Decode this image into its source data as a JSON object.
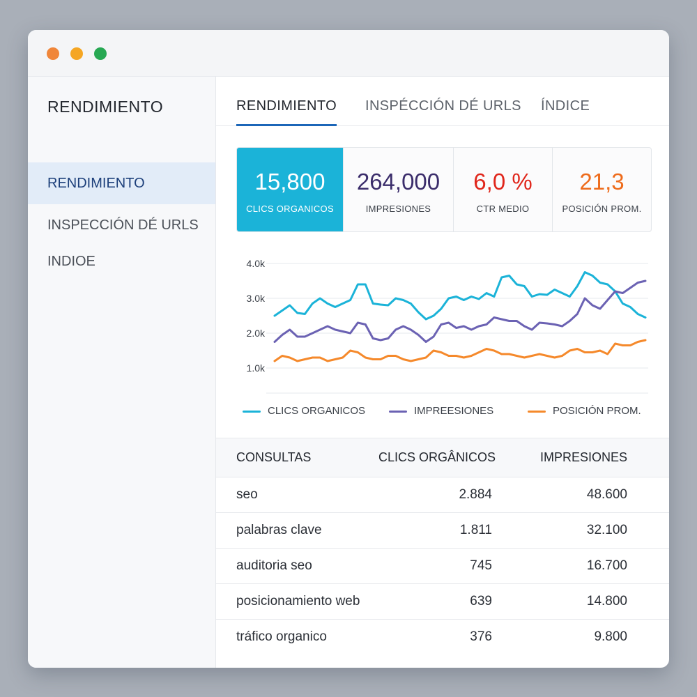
{
  "window": {
    "controls": [
      {
        "name": "close",
        "color": "#f0863a"
      },
      {
        "name": "minimize",
        "color": "#f5a623"
      },
      {
        "name": "maximize",
        "color": "#27a853"
      }
    ]
  },
  "sidebar": {
    "title": "RENDIMIENTO",
    "items": [
      {
        "label": "RENDIMIENTO",
        "active": true
      },
      {
        "label": "INSPECCIÓN DÉ URLS",
        "active": false
      },
      {
        "label": "INDIOE",
        "active": false
      }
    ]
  },
  "tabs": [
    {
      "label": "RENDIMIENTO",
      "active": true
    },
    {
      "label": "INSPÉCCIÓN DÉ URLS",
      "active": false
    },
    {
      "label": "ÍNDICE",
      "active": false
    }
  ],
  "stats": [
    {
      "value": "15,800",
      "label": "CLICS ORGANICOS",
      "color": "#ffffff",
      "highlight": true
    },
    {
      "value": "264,000",
      "label": "IMPRESIONES",
      "color": "#3b2d6b"
    },
    {
      "value": "6,0 %",
      "label": "CTR MEDIO",
      "color": "#e0261b"
    },
    {
      "value": "21,3",
      "label": "POSICIÓN PROM.",
      "color": "#ee6b1b"
    }
  ],
  "chart_data": {
    "type": "line",
    "ylim": [
      1.0,
      4.0
    ],
    "y_ticks": [
      "4.0k",
      "3.0k",
      "2.0k",
      "1.0k"
    ],
    "grid": true,
    "legend_position": "bottom",
    "series": [
      {
        "name": "CLICS ORGANICOS",
        "color": "#1bb3d8",
        "values": [
          2.5,
          2.65,
          2.8,
          2.58,
          2.55,
          2.85,
          3.0,
          2.85,
          2.75,
          2.85,
          2.95,
          3.4,
          3.4,
          2.85,
          2.82,
          2.8,
          3.0,
          2.95,
          2.85,
          2.6,
          2.4,
          2.5,
          2.7,
          3.0,
          3.05,
          2.95,
          3.05,
          2.98,
          3.15,
          3.05,
          3.6,
          3.65,
          3.4,
          3.35,
          3.05,
          3.12,
          3.1,
          3.25,
          3.15,
          3.05,
          3.35,
          3.75,
          3.65,
          3.45,
          3.4,
          3.2,
          2.85,
          2.75,
          2.55,
          2.45
        ]
      },
      {
        "name": "IMPREESIONES",
        "color": "#6b62b3",
        "values": [
          1.75,
          1.95,
          2.1,
          1.9,
          1.9,
          2.0,
          2.1,
          2.2,
          2.1,
          2.05,
          2.0,
          2.3,
          2.25,
          1.85,
          1.8,
          1.85,
          2.1,
          2.2,
          2.1,
          1.95,
          1.75,
          1.9,
          2.25,
          2.3,
          2.15,
          2.2,
          2.1,
          2.2,
          2.25,
          2.45,
          2.4,
          2.35,
          2.35,
          2.2,
          2.1,
          2.3,
          2.28,
          2.25,
          2.2,
          2.35,
          2.55,
          3.0,
          2.8,
          2.7,
          2.95,
          3.2,
          3.15,
          3.3,
          3.45,
          3.5
        ]
      },
      {
        "name": "POSICIÓN PROM.",
        "color": "#f5892b",
        "values": [
          1.2,
          1.35,
          1.3,
          1.2,
          1.25,
          1.3,
          1.3,
          1.2,
          1.25,
          1.3,
          1.5,
          1.45,
          1.3,
          1.25,
          1.25,
          1.35,
          1.35,
          1.25,
          1.2,
          1.25,
          1.3,
          1.5,
          1.45,
          1.35,
          1.35,
          1.3,
          1.35,
          1.45,
          1.55,
          1.5,
          1.4,
          1.4,
          1.35,
          1.3,
          1.35,
          1.4,
          1.35,
          1.3,
          1.35,
          1.5,
          1.55,
          1.45,
          1.45,
          1.5,
          1.4,
          1.7,
          1.65,
          1.65,
          1.75,
          1.8
        ]
      }
    ]
  },
  "table": {
    "headers": [
      "CONSULTAS",
      "CLICS ORGÂNICOS",
      "IMPRESIONES"
    ],
    "rows": [
      [
        "seo",
        "2.884",
        "48.600"
      ],
      [
        "palabras clave",
        "1.811",
        "32.100"
      ],
      [
        "auditoria seo",
        "745",
        "16.700"
      ],
      [
        "posicionamiento web",
        "639",
        "14.800"
      ],
      [
        "tráfico organico",
        "376",
        "9.800"
      ]
    ]
  }
}
